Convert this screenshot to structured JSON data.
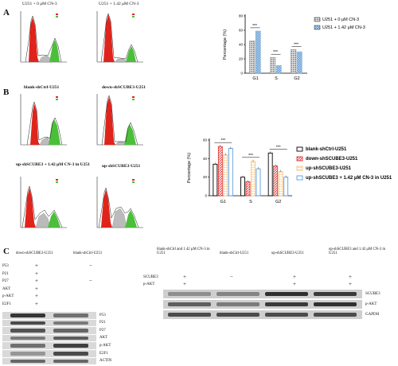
{
  "panels": {
    "a": {
      "letter": "A",
      "flow_titles": [
        "U251 + 0 μM CN-3",
        "U251 + 1.42 μM CN-3"
      ]
    },
    "b": {
      "letter": "B",
      "flow_titles": [
        "blank-shCtrl-U251",
        "down-shSCUBE3-U251",
        "up-shSCUBE3 + 1.42 μM CN-3 in U251",
        "up-shSCUBE3-U251"
      ]
    },
    "c": {
      "letter": "C"
    }
  },
  "chart_data": [
    {
      "type": "bar",
      "categories": [
        "G1",
        "S",
        "G2"
      ],
      "ylabel": "Percentage (%)",
      "ylim": [
        0,
        80
      ],
      "yticks": [
        0,
        20,
        40,
        60,
        80
      ],
      "series": [
        {
          "name": "U251 + 0 μM CN-3",
          "values": [
            45,
            22,
            33
          ],
          "color": "#4a4a4a",
          "pattern": "dots"
        },
        {
          "name": "U251 + 1.42 μM CN-3",
          "values": [
            59,
            11,
            30
          ],
          "color": "#7fb2e0",
          "pattern": "cross"
        }
      ],
      "annotations": [
        "***",
        "***",
        "***"
      ],
      "legend": "top-right"
    },
    {
      "type": "bar",
      "categories": [
        "G1",
        "S",
        "G2"
      ],
      "ylabel": "Percentage (%)",
      "ylim": [
        0,
        60
      ],
      "yticks": [
        0,
        20,
        40,
        60
      ],
      "series": [
        {
          "name": "blank-shCtrl-U251",
          "values": [
            34,
            20,
            46
          ],
          "color": "#000000"
        },
        {
          "name": "down-shSCUBE3-U251",
          "values": [
            53,
            15,
            32
          ],
          "color": "#e23b3b"
        },
        {
          "name": "up-shSCUBE3-U251",
          "values": [
            44,
            37,
            26
          ],
          "color": "#f3c27a"
        },
        {
          "name": "up-shSCUBE3 + 1.42 μM CN-3 in U251",
          "values": [
            51,
            29,
            20
          ],
          "color": "#5b9be0"
        }
      ],
      "annotations": [
        "***",
        "***",
        "***"
      ],
      "legend": "right"
    }
  ],
  "blot_c_left": {
    "col_headers": [
      "down-shSCUBE3-U251",
      "blank-shCtrl-U251"
    ],
    "rows": [
      {
        "label": "P53",
        "signs": [
          "+",
          "−"
        ]
      },
      {
        "label": "P21",
        "signs": [
          "+",
          ""
        ]
      },
      {
        "label": "P27",
        "signs": [
          "+",
          "−"
        ]
      },
      {
        "label": "AKT",
        "signs": [
          "+",
          ""
        ]
      },
      {
        "label": "p-AKT",
        "signs": [
          "+",
          ""
        ]
      },
      {
        "label": "E2F1",
        "signs": [
          "+",
          ""
        ]
      }
    ],
    "band_labels": [
      "P53",
      "P21",
      "P27",
      "AKT",
      "p-AKT",
      "E2F1",
      "ACTIN"
    ]
  },
  "blot_c_right": {
    "col_headers": [
      "blank-shCtrl and 1.42 μM CN-3 in U251",
      "blank-shCtrl-U251",
      "up-shSCUBE3-U251",
      "up-shSCUBE3 and 1.42 μM CN-3 in U251"
    ],
    "rows": [
      {
        "label": "SCUBE3",
        "signs": [
          "+",
          "−",
          "+",
          "+"
        ]
      },
      {
        "label": "p-AKT",
        "signs": [
          "+",
          "",
          "+",
          "+"
        ]
      }
    ],
    "band_labels": [
      "SCUBE3",
      "p-AKT",
      "GAPDH"
    ]
  }
}
